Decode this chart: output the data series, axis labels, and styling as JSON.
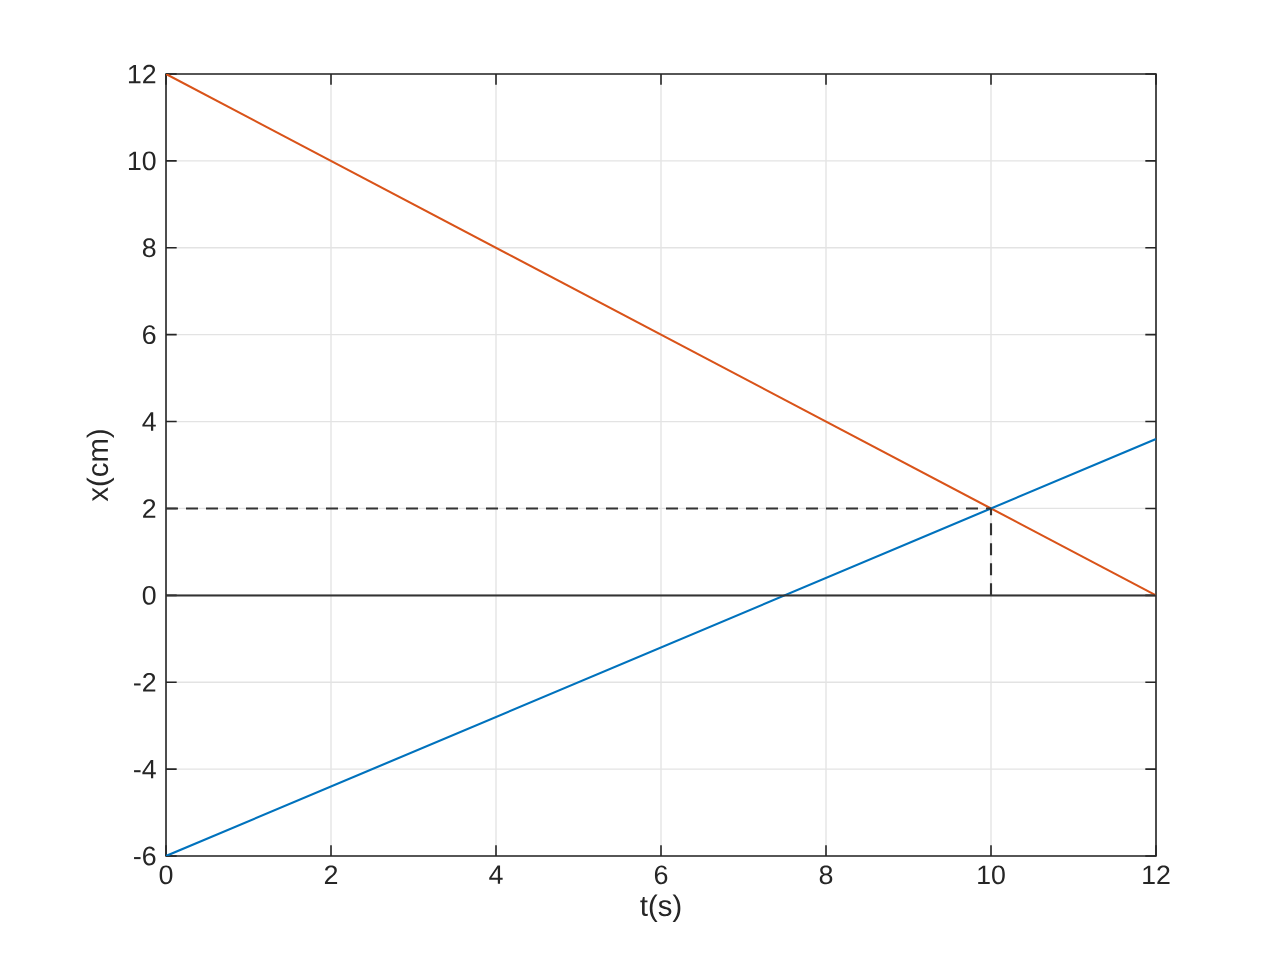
{
  "chart_data": {
    "type": "line",
    "xlabel": "t(s)",
    "ylabel": "x(cm)",
    "xlim": [
      0,
      12
    ],
    "ylim": [
      -6,
      12
    ],
    "xticks": [
      0,
      2,
      4,
      6,
      8,
      10,
      12
    ],
    "yticks": [
      -6,
      -4,
      -2,
      0,
      2,
      4,
      6,
      8,
      10,
      12
    ],
    "grid": true,
    "series": [
      {
        "x": [
          0,
          12
        ],
        "values": [
          12,
          0
        ],
        "color": "#d95319",
        "line_style": "solid"
      },
      {
        "x": [
          0,
          12
        ],
        "values": [
          -6,
          3.6
        ],
        "color": "#0072bd",
        "line_style": "solid"
      },
      {
        "x": [
          0,
          12
        ],
        "values": [
          0,
          0
        ],
        "color": "#333333",
        "line_style": "solid"
      },
      {
        "x": [
          0,
          10
        ],
        "values": [
          2,
          2
        ],
        "color": "#333333",
        "line_style": "dashed"
      },
      {
        "x": [
          10,
          10
        ],
        "values": [
          0,
          2
        ],
        "color": "#333333",
        "line_style": "dashed"
      }
    ]
  }
}
